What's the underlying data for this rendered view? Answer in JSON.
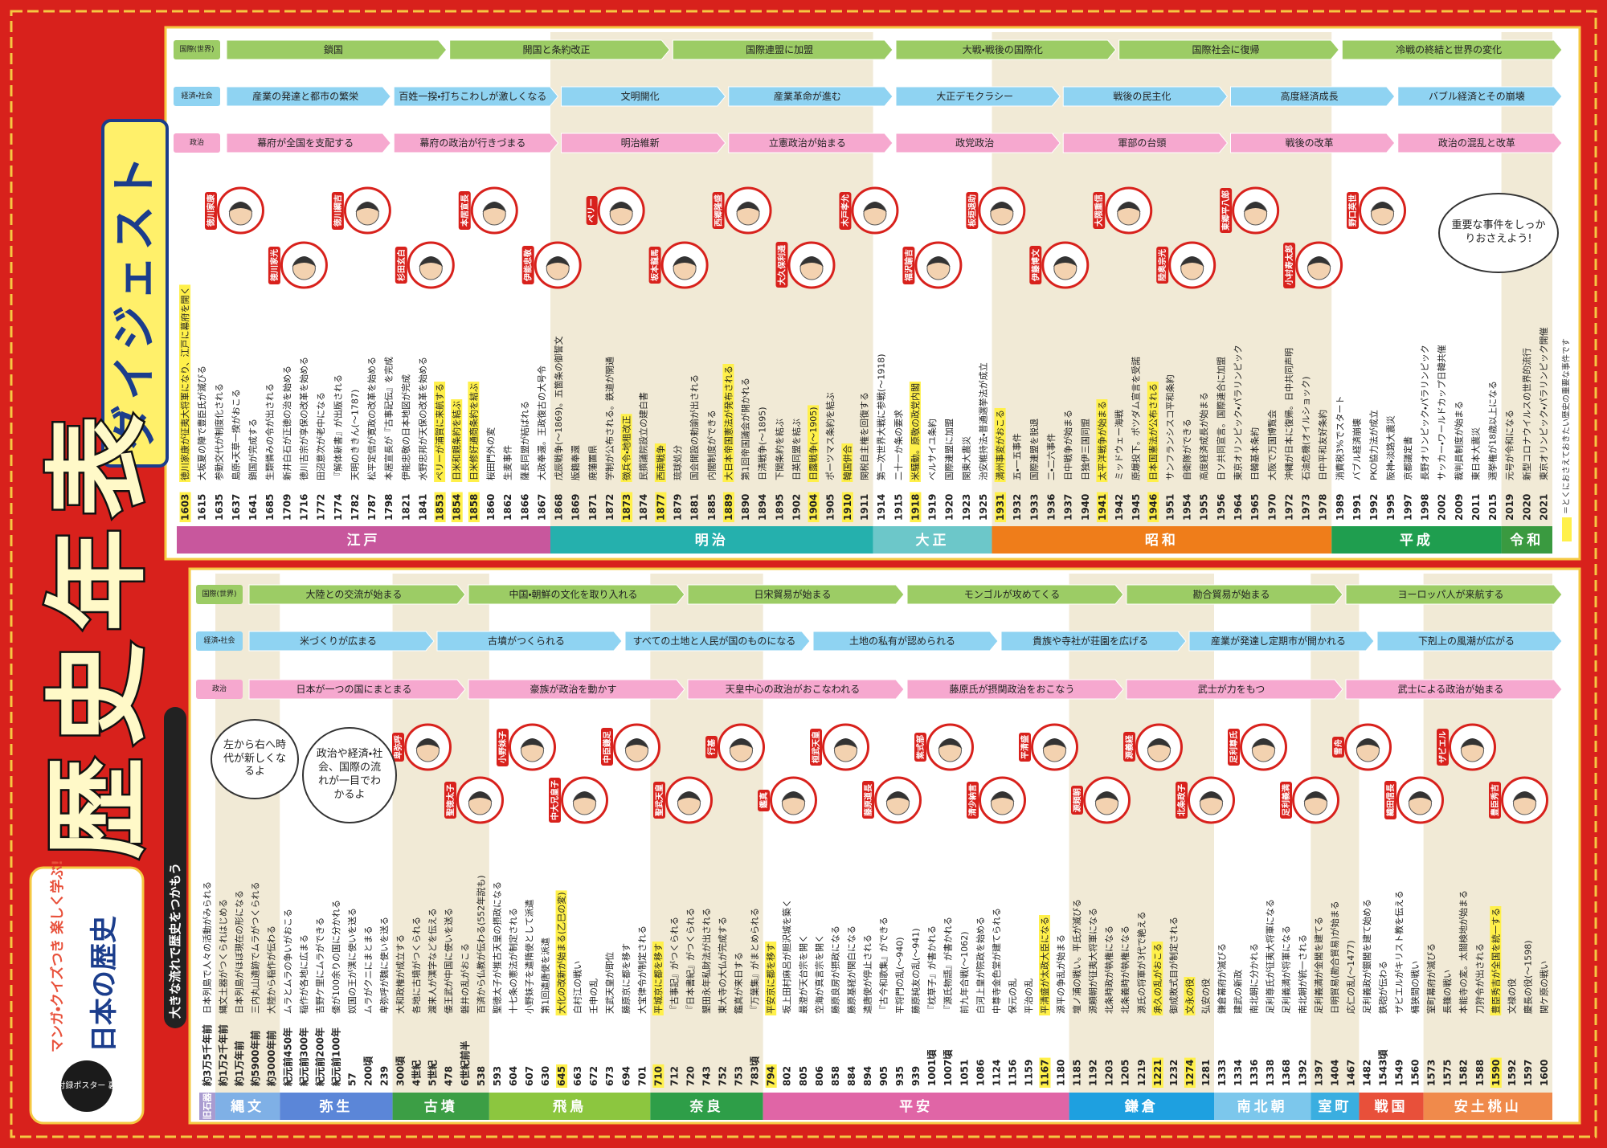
{
  "header": {
    "badge": "付録ポスター 裏",
    "series_top": "マンガ・クイズつき 楽しく学ぶ!",
    "series": "日本の歴史",
    "subtitle": "大きな流れで歴史をつかもう",
    "title": "歴史年表",
    "banner": "ダイジェスト"
  },
  "footnote": "＝とくにおさえておきたい歴史の重要な事件です",
  "lower": {
    "bubbles": [
      "左から右へ時代が新しくなるよ",
      "政治や経済・社会、国際の流れが一目でわかるよ"
    ],
    "rows": [
      {
        "label": "国際(世界)",
        "color": "#9ccc65",
        "arrows": [
          "大陸との交流が始まる",
          "中国・朝鮮の文化を取り入れる",
          "日宋貿易が始まる",
          "モンゴルが攻めてくる",
          "勘合貿易が始まる",
          "ヨーロッパ人が来航する"
        ]
      },
      {
        "label": "経済・社会",
        "color": "#8fd3f2",
        "arrows": [
          "米づくりが広まる",
          "古墳がつくられる",
          "すべての土地と人民が国のものになる",
          "土地の私有が認められる",
          "貴族や寺社が荘園を広げる",
          "産業が発達し定期市が開かれる",
          "下剋上の風潮が広がる"
        ]
      },
      {
        "label": "政治",
        "color": "#f6a8cf",
        "arrows": [
          "日本が一つの国にまとまる",
          "豪族が政治を動かす",
          "天皇中心の政治がおこなわれる",
          "藤原氏が摂関政治をおこなう",
          "武士が力をもつ",
          "武士による政治が始まる"
        ]
      }
    ],
    "portraits": [
      "卑弥呼",
      "聖徳太子",
      "小野妹子",
      "中大兄皇子",
      "中臣鎌足",
      "聖武天皇",
      "行基",
      "鑑真",
      "桓武天皇",
      "藤原道長",
      "紫式部",
      "清少納言",
      "平清盛",
      "源頼朝",
      "源義経",
      "北条政子",
      "足利尊氏",
      "足利義満",
      "雪舟",
      "織田信長",
      "ザビエル",
      "豊臣秀吉"
    ],
    "eras": [
      {
        "name": "旧石器",
        "color": "#a99bd0",
        "entries": [
          {
            "year": "約3万5千年前",
            "event": "日本列島で人々の活動がみられる"
          }
        ]
      },
      {
        "name": "縄文",
        "color": "#7fb0e6",
        "entries": [
          {
            "year": "約1万2千年前",
            "event": "縄文土器がつくられはじめる"
          },
          {
            "year": "約1万年前",
            "event": "日本列島がほぼ現在の形になる"
          },
          {
            "year": "約5900年前",
            "event": "三内丸山遺跡でムラがつくられる"
          },
          {
            "year": "約3000年前",
            "event": "大陸から稲作が伝わる"
          }
        ]
      },
      {
        "name": "弥生",
        "color": "#5b86d8",
        "entries": [
          {
            "year": "紀元前450年",
            "event": "ムラとムラの争いがおこる"
          },
          {
            "year": "紀元前300年",
            "event": "稲作が各地に広まる"
          },
          {
            "year": "紀元前200年",
            "event": "吉野ケ里にムラができる"
          },
          {
            "year": "紀元前100年",
            "event": "倭が100余りの国に分かれる"
          },
          {
            "year": "57",
            "event": "奴国の王が漢に使いを送る"
          },
          {
            "year": "200頃",
            "event": "ムラがクニにまとまる"
          },
          {
            "year": "239",
            "event": "卑弥呼が魏に使いを送る"
          }
        ]
      },
      {
        "name": "古墳",
        "color": "#3c9e45",
        "entries": [
          {
            "year": "300頃",
            "event": "大和政権が成立する"
          },
          {
            "year": "4世紀",
            "event": "各地に古墳がつくられる"
          },
          {
            "year": "5世紀",
            "event": "渡来人が漢字などを伝える"
          },
          {
            "year": "478",
            "event": "倭王武が中国に使いを送る"
          },
          {
            "year": "6世紀前半",
            "event": "磐井の乱がおこる"
          },
          {
            "year": "538",
            "event": "百済から仏教が伝わる(552年説も)"
          }
        ]
      },
      {
        "name": "飛鳥",
        "color": "#8cc63f",
        "entries": [
          {
            "year": "593",
            "event": "聖徳太子が推古天皇の摂政になる"
          },
          {
            "year": "604",
            "event": "十七条の憲法が制定される"
          },
          {
            "year": "607",
            "event": "小野妹子を遣隋使として派遣"
          },
          {
            "year": "630",
            "event": "第1回遣唐使を派遣"
          },
          {
            "year": "645",
            "event": "大化の改新が始まる(乙巳の変)",
            "hl": true
          },
          {
            "year": "663",
            "event": "白村江の戦い"
          },
          {
            "year": "672",
            "event": "壬申の乱"
          },
          {
            "year": "673",
            "event": "天武天皇が即位"
          },
          {
            "year": "694",
            "event": "藤原京に都を移す"
          },
          {
            "year": "701",
            "event": "大宝律令が制定される"
          }
        ]
      },
      {
        "name": "奈良",
        "color": "#2e9e48",
        "entries": [
          {
            "year": "710",
            "event": "平城京に都を移す",
            "hl": true
          },
          {
            "year": "712",
            "event": "『古事記』がつくられる"
          },
          {
            "year": "720",
            "event": "『日本書紀』がつくられる"
          },
          {
            "year": "743",
            "event": "墾田永年私財法が出される"
          },
          {
            "year": "752",
            "event": "東大寺の大仏が完成する"
          },
          {
            "year": "753",
            "event": "鑑真が来日する"
          },
          {
            "year": "783頃",
            "event": "『万葉集』がまとめられる"
          }
        ]
      },
      {
        "name": "平安",
        "color": "#e065a6",
        "entries": [
          {
            "year": "794",
            "event": "平安京に都を移す",
            "hl": true
          },
          {
            "year": "802",
            "event": "坂上田村麻呂が胆沢城を築く"
          },
          {
            "year": "805",
            "event": "最澄が天台宗を開く"
          },
          {
            "year": "806",
            "event": "空海が真言宗を開く"
          },
          {
            "year": "858",
            "event": "藤原良房が摂政になる"
          },
          {
            "year": "884",
            "event": "藤原基経が関白になる"
          },
          {
            "year": "894",
            "event": "遣唐使が停止される"
          },
          {
            "year": "905",
            "event": "『古今和歌集』ができる"
          },
          {
            "year": "935",
            "event": "平将門の乱(〜940)"
          },
          {
            "year": "939",
            "event": "藤原純友の乱(〜941)"
          },
          {
            "year": "1001頃",
            "event": "『枕草子』が書かれる"
          },
          {
            "year": "1007頃",
            "event": "『源氏物語』が書かれる"
          },
          {
            "year": "1051",
            "event": "前九年合戦(〜1062)"
          },
          {
            "year": "1086",
            "event": "白河上皇が院政を始める"
          },
          {
            "year": "1124",
            "event": "中尊寺金色堂が建てられる"
          },
          {
            "year": "1156",
            "event": "保元の乱"
          },
          {
            "year": "1159",
            "event": "平治の乱"
          },
          {
            "year": "1167",
            "event": "平清盛が太政大臣になる",
            "hl": true
          },
          {
            "year": "1180",
            "event": "源平の争乱が始まる"
          }
        ]
      },
      {
        "name": "鎌倉",
        "color": "#1ea0e0",
        "entries": [
          {
            "year": "1185",
            "event": "壇ノ浦の戦い。平氏が滅びる"
          },
          {
            "year": "1192",
            "event": "源頼朝が征夷大将軍になる"
          },
          {
            "year": "1203",
            "event": "北条時政が執権になる"
          },
          {
            "year": "1205",
            "event": "北条義時が執権になる"
          },
          {
            "year": "1219",
            "event": "源氏の将軍が3代で絶える"
          },
          {
            "year": "1221",
            "event": "承久の乱がおこる",
            "hl": true
          },
          {
            "year": "1232",
            "event": "御成敗式目が制定される"
          },
          {
            "year": "1274",
            "event": "文永の役",
            "hl": true
          },
          {
            "year": "1281",
            "event": "弘安の役"
          }
        ]
      },
      {
        "name": "南北朝",
        "color": "#7cc7ec",
        "entries": [
          {
            "year": "1333",
            "event": "鎌倉幕府が滅びる"
          },
          {
            "year": "1334",
            "event": "建武の新政"
          },
          {
            "year": "1336",
            "event": "南北朝に分かれる"
          },
          {
            "year": "1338",
            "event": "足利尊氏が征夷大将軍になる"
          },
          {
            "year": "1368",
            "event": "足利義満が将軍になる"
          },
          {
            "year": "1392",
            "event": "南北朝が統一される"
          }
        ]
      },
      {
        "name": "室町",
        "color": "#3aaee0",
        "entries": [
          {
            "year": "1397",
            "event": "足利義満が金閣を建てる"
          },
          {
            "year": "1404",
            "event": "日明貿易(勘合貿易)が始まる"
          },
          {
            "year": "1467",
            "event": "応仁の乱(〜1477)"
          }
        ]
      },
      {
        "name": "戦国",
        "color": "#e8503a",
        "entries": [
          {
            "year": "1482",
            "event": "足利義政が銀閣を建て始める"
          },
          {
            "year": "1543頃",
            "event": "鉄砲が伝わる"
          },
          {
            "year": "1549",
            "event": "ザビエルがキリスト教を伝える"
          },
          {
            "year": "1560",
            "event": "桶狭間の戦い"
          }
        ]
      },
      {
        "name": "安土桃山",
        "color": "#f08a4b",
        "entries": [
          {
            "year": "1573",
            "event": "室町幕府が滅びる"
          },
          {
            "year": "1575",
            "event": "長篠の戦い"
          },
          {
            "year": "1582",
            "event": "本能寺の変。太閤検地が始まる"
          },
          {
            "year": "1588",
            "event": "刀狩令が出される"
          },
          {
            "year": "1590",
            "event": "豊臣秀吉が全国を統一する",
            "hl": true
          },
          {
            "year": "1592",
            "event": "文禄の役"
          },
          {
            "year": "1597",
            "event": "慶長の役(〜1598)"
          },
          {
            "year": "1600",
            "event": "関ケ原の戦い"
          }
        ]
      }
    ]
  },
  "upper": {
    "bubbles": [
      "重要な事件をしっかりおさえよう!"
    ],
    "rows": [
      {
        "label": "国際(世界)",
        "color": "#9ccc65",
        "arrows": [
          "鎖国",
          "開国と条約改正",
          "国際連盟に加盟",
          "大戦・戦後の国際化",
          "国際社会に復帰",
          "冷戦の終結と世界の変化"
        ]
      },
      {
        "label": "経済・社会",
        "color": "#8fd3f2",
        "arrows": [
          "産業の発達と都市の繁栄",
          "百姓一揆・打ちこわしが激しくなる",
          "文明開化",
          "産業革命が進む",
          "大正デモクラシー",
          "戦後の民主化",
          "高度経済成長",
          "バブル経済とその崩壊"
        ]
      },
      {
        "label": "政治",
        "color": "#f6a8cf",
        "arrows": [
          "幕府が全国を支配する",
          "幕府の政治が行きづまる",
          "明治維新",
          "立憲政治が始まる",
          "政党政治",
          "軍部の台頭",
          "戦後の改革",
          "政治の混乱と改革"
        ]
      }
    ],
    "portraits": [
      "徳川家康",
      "徳川家光",
      "徳川綱吉",
      "杉田玄白",
      "本居宣長",
      "伊能忠敬",
      "ペリー",
      "坂本龍馬",
      "西郷隆盛",
      "大久保利通",
      "木戸孝允",
      "福沢諭吉",
      "板垣退助",
      "伊藤博文",
      "大隈重信",
      "陸奥宗光",
      "東郷平八郎",
      "小村寿太郎",
      "野口英世"
    ],
    "eras": [
      {
        "name": "江戸",
        "color": "#c8579d",
        "entries": [
          {
            "year": "1603",
            "event": "徳川家康が征夷大将軍になり、江戸に幕府を開く",
            "hl": true
          },
          {
            "year": "1615",
            "event": "大坂夏の陣で豊臣氏が滅びる"
          },
          {
            "year": "1635",
            "event": "参勤交代が制度化される"
          },
          {
            "year": "1637",
            "event": "島原・天草一揆がおこる"
          },
          {
            "year": "1641",
            "event": "鎖国が完成する"
          },
          {
            "year": "1685",
            "event": "生類憐みの令が出される"
          },
          {
            "year": "1709",
            "event": "新井白石が正徳の治を始める"
          },
          {
            "year": "1716",
            "event": "徳川吉宗が享保の改革を始める"
          },
          {
            "year": "1772",
            "event": "田沼意次が老中になる"
          },
          {
            "year": "1774",
            "event": "『解体新書』が出版される"
          },
          {
            "year": "1782",
            "event": "天明のききん(〜1787)"
          },
          {
            "year": "1787",
            "event": "松平定信が寛政の改革を始める"
          },
          {
            "year": "1798",
            "event": "本居宣長が『古事記伝』を完成"
          },
          {
            "year": "1821",
            "event": "伊能忠敬の日本地図が完成"
          },
          {
            "year": "1841",
            "event": "水野忠邦が天保の改革を始める"
          },
          {
            "year": "1853",
            "event": "ペリーが浦賀に来航する",
            "hl": true
          },
          {
            "year": "1854",
            "event": "日米和親条約を結ぶ",
            "hl": true
          },
          {
            "year": "1858",
            "event": "日米修好通商条約を結ぶ",
            "hl": true
          },
          {
            "year": "1860",
            "event": "桜田門外の変"
          },
          {
            "year": "1862",
            "event": "生麦事件"
          },
          {
            "year": "1866",
            "event": "薩長同盟が結ばれる"
          },
          {
            "year": "1867",
            "event": "大政奉還。王政復古の大号令"
          }
        ]
      },
      {
        "name": "明治",
        "color": "#25b0ad",
        "entries": [
          {
            "year": "1868",
            "event": "戊辰戦争(〜1869)。五箇条の御誓文"
          },
          {
            "year": "1869",
            "event": "版籍奉還"
          },
          {
            "year": "1871",
            "event": "廃藩置県"
          },
          {
            "year": "1872",
            "event": "学制が公布される。鉄道が開通"
          },
          {
            "year": "1873",
            "event": "徴兵令・地租改正",
            "hl": true
          },
          {
            "year": "1874",
            "event": "民撰議院設立の建白書"
          },
          {
            "year": "1877",
            "event": "西南戦争",
            "hl": true
          },
          {
            "year": "1879",
            "event": "琉球処分"
          },
          {
            "year": "1881",
            "event": "国会開設の勅諭が出される"
          },
          {
            "year": "1885",
            "event": "内閣制度ができる"
          },
          {
            "year": "1889",
            "event": "大日本帝国憲法が発布される",
            "hl": true
          },
          {
            "year": "1890",
            "event": "第1回帝国議会が開かれる"
          },
          {
            "year": "1894",
            "event": "日清戦争(〜1895)"
          },
          {
            "year": "1895",
            "event": "下関条約を結ぶ"
          },
          {
            "year": "1902",
            "event": "日英同盟を結ぶ"
          },
          {
            "year": "1904",
            "event": "日露戦争(〜1905)",
            "hl": true
          },
          {
            "year": "1905",
            "event": "ポーツマス条約を結ぶ"
          },
          {
            "year": "1910",
            "event": "韓国併合",
            "hl": true
          },
          {
            "year": "1911",
            "event": "関税自主権を回復する"
          }
        ]
      },
      {
        "name": "大正",
        "color": "#6cc7c9",
        "entries": [
          {
            "year": "1914",
            "event": "第一次世界大戦に参戦(〜1918)"
          },
          {
            "year": "1915",
            "event": "二十一か条の要求"
          },
          {
            "year": "1918",
            "event": "米騒動。原敬の政党内閣",
            "hl": true
          },
          {
            "year": "1919",
            "event": "ベルサイユ条約"
          },
          {
            "year": "1920",
            "event": "国際連盟に加盟"
          },
          {
            "year": "1923",
            "event": "関東大震災"
          },
          {
            "year": "1925",
            "event": "治安維持法・普通選挙法が成立"
          }
        ]
      },
      {
        "name": "昭和",
        "color": "#ef7d1a",
        "entries": [
          {
            "year": "1931",
            "event": "満州事変がおこる",
            "hl": true
          },
          {
            "year": "1932",
            "event": "五・一五事件"
          },
          {
            "year": "1933",
            "event": "国際連盟を脱退"
          },
          {
            "year": "1936",
            "event": "二・二六事件"
          },
          {
            "year": "1937",
            "event": "日中戦争が始まる"
          },
          {
            "year": "1940",
            "event": "日独伊三国同盟"
          },
          {
            "year": "1941",
            "event": "太平洋戦争が始まる",
            "hl": true
          },
          {
            "year": "1942",
            "event": "ミッドウェー海戦"
          },
          {
            "year": "1945",
            "event": "原爆投下。ポツダム宣言を受諾"
          },
          {
            "year": "1946",
            "event": "日本国憲法が公布される",
            "hl": true
          },
          {
            "year": "1951",
            "event": "サンフランシスコ平和条約"
          },
          {
            "year": "1954",
            "event": "自衛隊ができる"
          },
          {
            "year": "1955",
            "event": "高度経済成長が始まる"
          },
          {
            "year": "1956",
            "event": "日ソ共同宣言。国際連合に加盟"
          },
          {
            "year": "1964",
            "event": "東京オリンピック・パラリンピック"
          },
          {
            "year": "1965",
            "event": "日韓基本条約"
          },
          {
            "year": "1970",
            "event": "大阪で万国博覧会"
          },
          {
            "year": "1972",
            "event": "沖縄が日本に復帰。日中共同声明"
          },
          {
            "year": "1973",
            "event": "石油危機(オイルショック)"
          },
          {
            "year": "1978",
            "event": "日中平和友好条約"
          }
        ]
      },
      {
        "name": "平成",
        "color": "#1f9e4f",
        "entries": [
          {
            "year": "1989",
            "event": "消費税3%でスタート"
          },
          {
            "year": "1991",
            "event": "バブル経済崩壊"
          },
          {
            "year": "1992",
            "event": "PKO協力法が成立"
          },
          {
            "year": "1995",
            "event": "阪神・淡路大震災"
          },
          {
            "year": "1997",
            "event": "京都議定書"
          },
          {
            "year": "1998",
            "event": "長野オリンピック・パラリンピック"
          },
          {
            "year": "2002",
            "event": "サッカー・ワールドカップ日韓共催"
          },
          {
            "year": "2009",
            "event": "裁判員制度が始まる"
          },
          {
            "year": "2011",
            "event": "東日本大震災"
          },
          {
            "year": "2015",
            "event": "選挙権が18歳以上になる"
          }
        ]
      },
      {
        "name": "令和",
        "color": "#3a9a40",
        "entries": [
          {
            "year": "2019",
            "event": "元号が令和になる"
          },
          {
            "year": "2020",
            "event": "新型コロナウイルスの世界的流行"
          },
          {
            "year": "2021",
            "event": "東京オリンピック・パラリンピック開催"
          }
        ]
      }
    ]
  }
}
